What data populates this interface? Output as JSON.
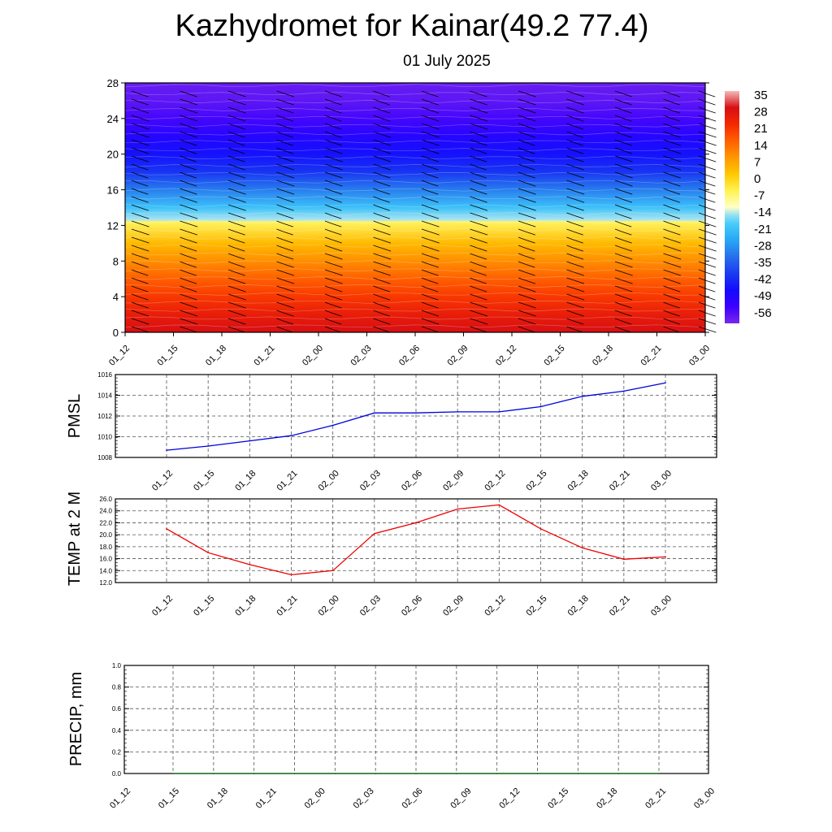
{
  "title": "Kazhydromet for Kainar(49.2 77.4)",
  "subtitle": "01 July 2025",
  "colors": {
    "pmsl_line": "#0000dd",
    "temp_line": "#ee0000",
    "precip_line": "#006400",
    "grid": "#555555"
  },
  "chart_data": [
    {
      "type": "heatmap",
      "name": "cross-section",
      "x": [
        "01_12",
        "01_15",
        "01_18",
        "01_21",
        "02_00",
        "02_03",
        "02_06",
        "02_09",
        "02_12",
        "02_15",
        "02_18",
        "02_21",
        "03_00"
      ],
      "ylim": [
        0,
        28
      ],
      "yticks": [
        0,
        4,
        8,
        12,
        16,
        20,
        24,
        28
      ],
      "colorbar": {
        "labels": [
          "35",
          "28",
          "21",
          "14",
          "7",
          "0",
          "-7",
          "-14",
          "-21",
          "-28",
          "-35",
          "-42",
          "-49",
          "-56"
        ],
        "range": [
          -63,
          35
        ]
      },
      "profile": [
        {
          "level": 0,
          "value": 28
        },
        {
          "level": 2,
          "value": 24
        },
        {
          "level": 4,
          "value": 19
        },
        {
          "level": 6,
          "value": 14
        },
        {
          "level": 8,
          "value": 8
        },
        {
          "level": 10,
          "value": 2
        },
        {
          "level": 12.4,
          "value": -8
        },
        {
          "level": 12.6,
          "value": -16
        },
        {
          "level": 14,
          "value": -23
        },
        {
          "level": 16,
          "value": -33
        },
        {
          "level": 18,
          "value": -43
        },
        {
          "level": 20,
          "value": -48
        },
        {
          "level": 22,
          "value": -52
        },
        {
          "level": 24,
          "value": -57
        },
        {
          "level": 26,
          "value": -60
        },
        {
          "level": 28,
          "value": -61
        }
      ]
    },
    {
      "type": "line",
      "name": "pmsl",
      "ylabel": "PMSL",
      "x": [
        "01_12",
        "01_15",
        "01_18",
        "01_21",
        "02_00",
        "02_03",
        "02_06",
        "02_09",
        "02_12",
        "02_15",
        "02_18",
        "02_21",
        "03_00"
      ],
      "values": [
        1008.7,
        1009.1,
        1009.6,
        1010.1,
        1011.1,
        1012.3,
        1012.3,
        1012.4,
        1012.4,
        1012.9,
        1013.9,
        1014.4,
        1015.2
      ],
      "ylim": [
        1008,
        1016
      ],
      "yticks": [
        "1008",
        "1010",
        "1012",
        "1014",
        "1016"
      ]
    },
    {
      "type": "line",
      "name": "temp",
      "ylabel": "TEMP at 2 M",
      "x": [
        "01_12",
        "01_15",
        "01_18",
        "01_21",
        "02_00",
        "02_03",
        "02_06",
        "02_09",
        "02_12",
        "02_15",
        "02_18",
        "02_21",
        "03_00"
      ],
      "values": [
        21.0,
        17.0,
        15.0,
        13.3,
        14.0,
        20.2,
        22.0,
        24.3,
        25.0,
        21.0,
        17.8,
        15.9,
        16.3
      ],
      "ylim": [
        12,
        26
      ],
      "yticks": [
        "12.0",
        "14.0",
        "16.0",
        "18.0",
        "20.0",
        "22.0",
        "24.0",
        "26.0"
      ]
    },
    {
      "type": "line",
      "name": "precip",
      "ylabel": "PRECIP, mm",
      "x": [
        "01_12",
        "01_15",
        "01_18",
        "01_21",
        "02_00",
        "02_03",
        "02_06",
        "02_09",
        "02_12",
        "02_15",
        "02_18",
        "02_21",
        "03_00"
      ],
      "values": [
        0,
        0,
        0,
        0,
        0,
        0,
        0,
        0,
        0,
        0,
        0,
        0,
        0
      ],
      "ylim": [
        0,
        1
      ],
      "yticks": [
        "0.0",
        "0.2",
        "0.4",
        "0.6",
        "0.8",
        "1.0"
      ]
    }
  ]
}
